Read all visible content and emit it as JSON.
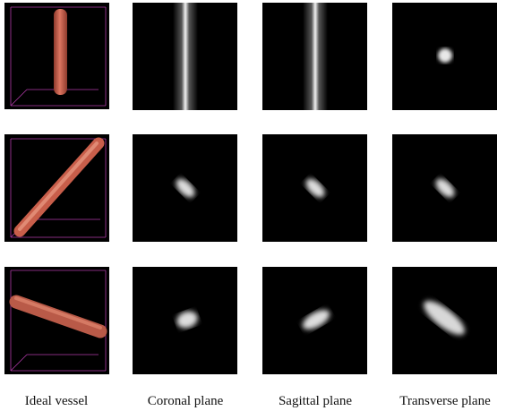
{
  "captions": [
    "Ideal vessel",
    "Coronal plane",
    "Sagittal plane",
    "Transverse plane"
  ]
}
